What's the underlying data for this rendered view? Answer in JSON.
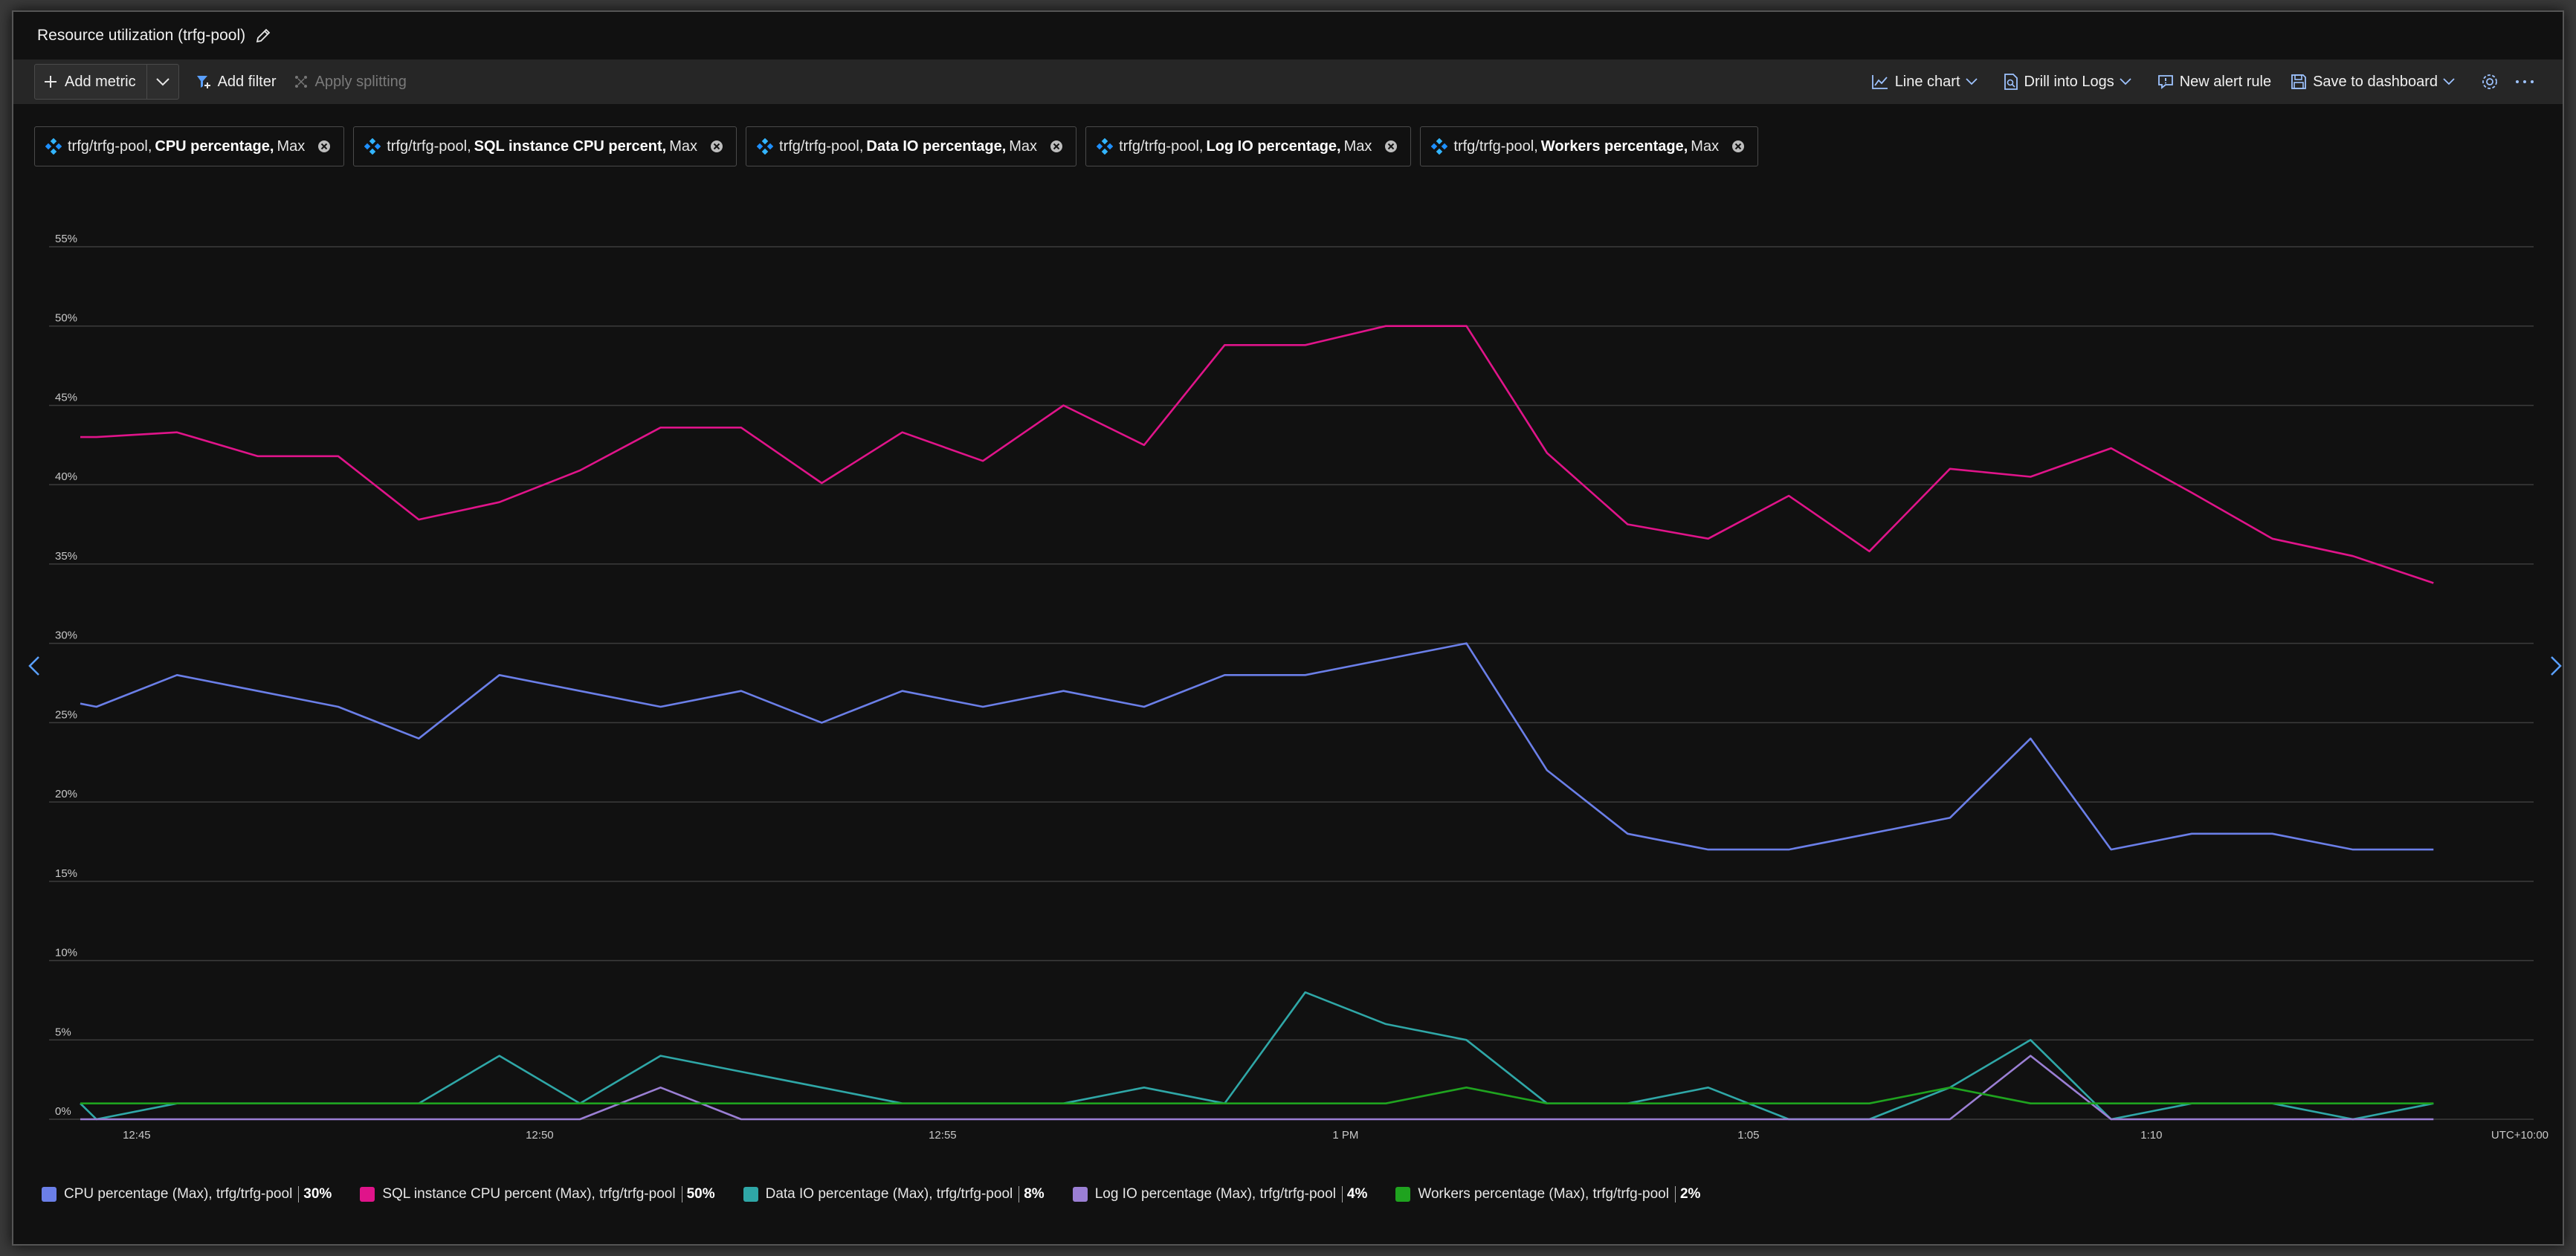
{
  "window": {
    "title": "Resource utilization (trfg-pool)"
  },
  "toolbar": {
    "add_metric": "Add metric",
    "add_filter": "Add filter",
    "apply_splitting": "Apply splitting",
    "line_chart": "Line chart",
    "drill_into_logs": "Drill into Logs",
    "new_alert_rule": "New alert rule",
    "save_to_dashboard": "Save to dashboard",
    "icons": [
      "plus-icon",
      "chevron-down-icon",
      "filter-icon",
      "splitting-icon",
      "line-chart-icon",
      "logs-icon",
      "alert-icon",
      "save-icon",
      "gear-icon",
      "more-icon"
    ]
  },
  "pills": [
    {
      "resource": "trfg/trfg-pool,",
      "metric": "CPU percentage,",
      "agg": "Max",
      "color": "#1e90ff"
    },
    {
      "resource": "trfg/trfg-pool,",
      "metric": "SQL instance CPU percent,",
      "agg": "Max",
      "color": "#1e90ff"
    },
    {
      "resource": "trfg/trfg-pool,",
      "metric": "Data IO percentage,",
      "agg": "Max",
      "color": "#1e90ff"
    },
    {
      "resource": "trfg/trfg-pool,",
      "metric": "Log IO percentage,",
      "agg": "Max",
      "color": "#1e90ff"
    },
    {
      "resource": "trfg/trfg-pool,",
      "metric": "Workers percentage,",
      "agg": "Max",
      "color": "#1e90ff"
    }
  ],
  "legend": [
    {
      "label": "CPU percentage (Max), trfg/trfg-pool",
      "value": "30%",
      "color": "#6b7fe8"
    },
    {
      "label": "SQL instance CPU percent (Max), trfg/trfg-pool",
      "value": "50%",
      "color": "#e0148a"
    },
    {
      "label": "Data IO percentage (Max), trfg/trfg-pool",
      "value": "8%",
      "color": "#2fa7a7"
    },
    {
      "label": "Log IO percentage (Max), trfg/trfg-pool",
      "value": "4%",
      "color": "#9b7fd4"
    },
    {
      "label": "Workers percentage (Max), trfg/trfg-pool",
      "value": "2%",
      "color": "#1fa31f"
    }
  ],
  "chart_data": {
    "type": "line",
    "timezone_label": "UTC+10:00",
    "x_tick_labels": [
      "12:45",
      "12:50",
      "12:55",
      "1 PM",
      "1:05",
      "1:10"
    ],
    "y_tick_labels": [
      "0%",
      "5%",
      "10%",
      "15%",
      "20%",
      "25%",
      "30%",
      "35%",
      "40%",
      "45%",
      "50%",
      "55%"
    ],
    "ylim": [
      0,
      55
    ],
    "x_minutes": [
      -0.2,
      0,
      1,
      2,
      3,
      4,
      5,
      6,
      7,
      8,
      9,
      10,
      11,
      12,
      13,
      14,
      15,
      16,
      17,
      18,
      19,
      20,
      21,
      22,
      23,
      24,
      25,
      26,
      27,
      28,
      29
    ],
    "series": [
      {
        "name": "SQL instance CPU percent (Max), trfg/trfg-pool",
        "color": "#e0148a",
        "values": [
          43,
          43,
          43.3,
          41.8,
          41.8,
          37.8,
          38.9,
          40.9,
          43.6,
          43.6,
          40.1,
          43.3,
          41.5,
          45,
          42.5,
          48.8,
          48.8,
          50,
          50,
          42,
          37.5,
          36.6,
          39.3,
          35.8,
          41,
          40.5,
          42.3,
          39.5,
          36.6,
          35.5,
          33.8
        ]
      },
      {
        "name": "CPU percentage (Max), trfg/trfg-pool",
        "color": "#6b7fe8",
        "values": [
          26.2,
          26,
          28,
          27,
          26,
          24,
          28,
          27,
          26,
          27,
          25,
          27,
          26,
          27,
          26,
          28,
          28,
          29,
          30,
          22,
          18,
          17,
          17,
          18,
          19,
          24,
          17,
          18,
          18,
          17,
          17
        ]
      },
      {
        "name": "Data IO percentage (Max), trfg/trfg-pool",
        "color": "#2fa7a7",
        "values": [
          1,
          0,
          1,
          1,
          1,
          1,
          4,
          1,
          4,
          3,
          2,
          1,
          1,
          1,
          2,
          1,
          8,
          6,
          5,
          1,
          1,
          2,
          0,
          0,
          2,
          5,
          0,
          1,
          1,
          0,
          1
        ]
      },
      {
        "name": "Log IO percentage (Max), trfg/trfg-pool",
        "color": "#9b7fd4",
        "values": [
          0,
          0,
          0,
          0,
          0,
          0,
          0,
          0,
          2,
          0,
          0,
          0,
          0,
          0,
          0,
          0,
          0,
          0,
          0,
          0,
          0,
          0,
          0,
          0,
          0,
          4,
          0,
          0,
          0,
          0,
          0
        ]
      },
      {
        "name": "Workers percentage (Max), trfg/trfg-pool",
        "color": "#1fa31f",
        "values": [
          1,
          1,
          1,
          1,
          1,
          1,
          1,
          1,
          1,
          1,
          1,
          1,
          1,
          1,
          1,
          1,
          1,
          1,
          2,
          1,
          1,
          1,
          1,
          1,
          2,
          1,
          1,
          1,
          1,
          1,
          1
        ]
      }
    ]
  }
}
